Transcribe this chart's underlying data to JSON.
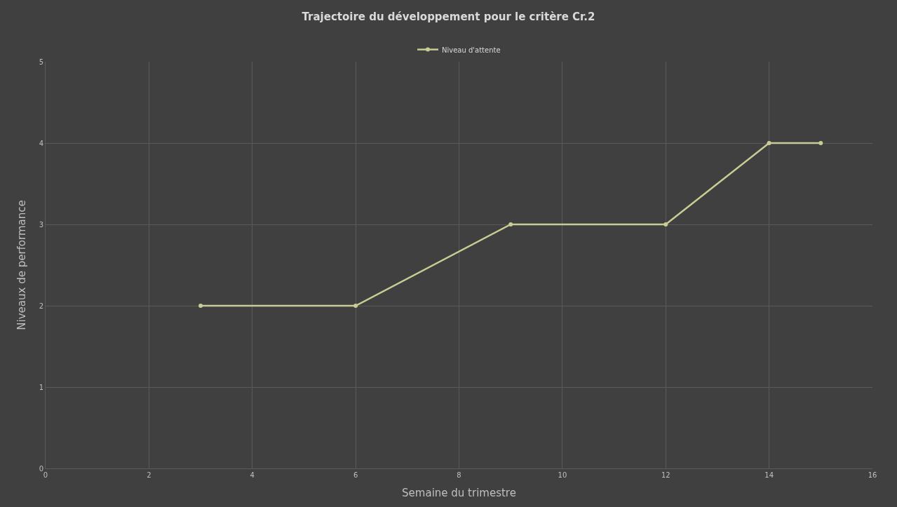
{
  "chart_data": {
    "type": "line",
    "title": "Trajectoire du développement pour le critère Cr.2",
    "xlabel": "Semaine du trimestre",
    "ylabel": "Niveaux de performance",
    "x": [
      3,
      6,
      9,
      12,
      14,
      15
    ],
    "series": [
      {
        "name": "Niveau d'attente",
        "color": "#c9cc94",
        "values": [
          2,
          2,
          3,
          3,
          4,
          4
        ]
      }
    ],
    "xlim": [
      0,
      16
    ],
    "xticks": [
      0,
      2,
      4,
      6,
      8,
      10,
      12,
      14,
      16
    ],
    "ylim": [
      0,
      5
    ],
    "yticks": [
      0,
      1,
      2,
      3,
      4,
      5
    ],
    "grid": true,
    "legend": "top",
    "marker": "circle",
    "line_style": "solid"
  }
}
